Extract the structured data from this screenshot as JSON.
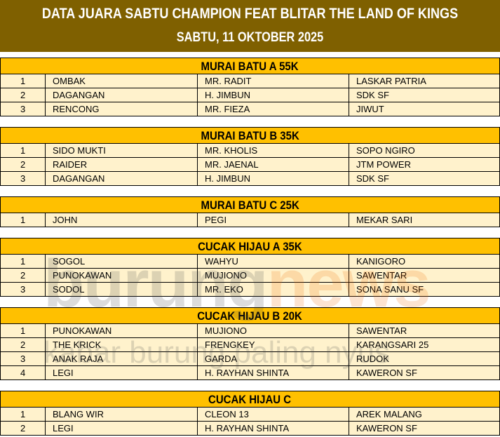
{
  "header": {
    "title": "DATA JUARA SABTU CHAMPION FEAT BLITAR THE LAND OF KINGS",
    "date": "SABTU,  11 OKTOBER 2025"
  },
  "watermark": {
    "brand_a": "burung",
    "brand_b": "news",
    "tagline": "kabar burung paling nyus"
  },
  "colors": {
    "banner": "#7f6000",
    "section_header": "#ffc000",
    "row": "#fff2cc"
  },
  "sections": [
    {
      "title": "MURAI BATU A 55K",
      "rows": [
        [
          "1",
          "OMBAK",
          "MR. RADIT",
          "LASKAR PATRIA"
        ],
        [
          "2",
          "DAGANGAN",
          "H. JIMBUN",
          "SDK SF"
        ],
        [
          "3",
          "RENCONG",
          "MR. FIEZA",
          "JIWUT"
        ]
      ]
    },
    {
      "title": "MURAI BATU B 35K",
      "rows": [
        [
          "1",
          "SIDO MUKTI",
          "MR. KHOLIS",
          "SOPO NGIRO"
        ],
        [
          "2",
          "RAIDER",
          "MR. JAENAL",
          "JTM POWER"
        ],
        [
          "3",
          "DAGANGAN",
          "H. JIMBUN",
          "SDK SF"
        ]
      ]
    },
    {
      "title": "MURAI BATU C 25K",
      "rows": [
        [
          "1",
          "JOHN",
          "PEGI",
          "MEKAR SARI"
        ]
      ]
    },
    {
      "title": "CUCAK HIJAU A 35K",
      "rows": [
        [
          "1",
          "SOGOL",
          "WAHYU",
          "KANIGORO"
        ],
        [
          "2",
          "PUNOKAWAN",
          "MUJIONO",
          "SAWENTAR"
        ],
        [
          "3",
          "SODOL",
          "MR. EKO",
          "SONA SANU SF"
        ]
      ]
    },
    {
      "title": "CUCAK HIJAU B 20K",
      "rows": [
        [
          "1",
          "PUNOKAWAN",
          "MUJIONO",
          "SAWENTAR"
        ],
        [
          "2",
          "THE KRICK",
          "FRENGKEY",
          "KARANGSARI 25"
        ],
        [
          "3",
          "ANAK RAJA",
          "GARDA",
          "RUDOK"
        ],
        [
          "4",
          "LEGI",
          "H. RAYHAN SHINTA",
          "KAWERON SF"
        ]
      ]
    },
    {
      "title": "CUCAK HIJAU C",
      "rows": [
        [
          "1",
          "BLANG WIR",
          "CLEON 13",
          "AREK MALANG"
        ],
        [
          "2",
          "LEGI",
          "H. RAYHAN SHINTA",
          "KAWERON SF"
        ]
      ]
    }
  ]
}
